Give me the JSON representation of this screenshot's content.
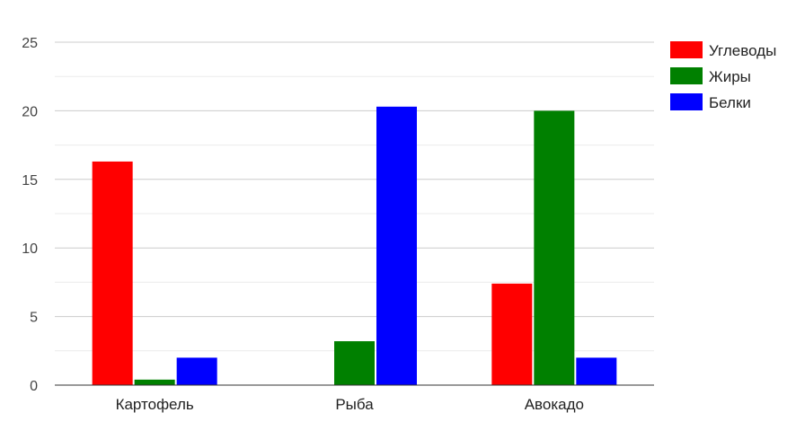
{
  "chart_data": {
    "type": "bar",
    "categories": [
      "Картофель",
      "Рыба",
      "Авокадо"
    ],
    "series": [
      {
        "name": "Углеводы",
        "color": "#ff0000",
        "values": [
          16.3,
          0,
          7.4
        ]
      },
      {
        "name": "Жиры",
        "color": "#008000",
        "values": [
          0.4,
          3.2,
          20.0
        ]
      },
      {
        "name": "Белки",
        "color": "#0000ff",
        "values": [
          2.0,
          20.3,
          2.0
        ]
      }
    ],
    "yticks": [
      "0",
      "5",
      "10",
      "15",
      "20",
      "25"
    ],
    "ylim": [
      0,
      25
    ],
    "grid": true,
    "legend_position": "right"
  }
}
